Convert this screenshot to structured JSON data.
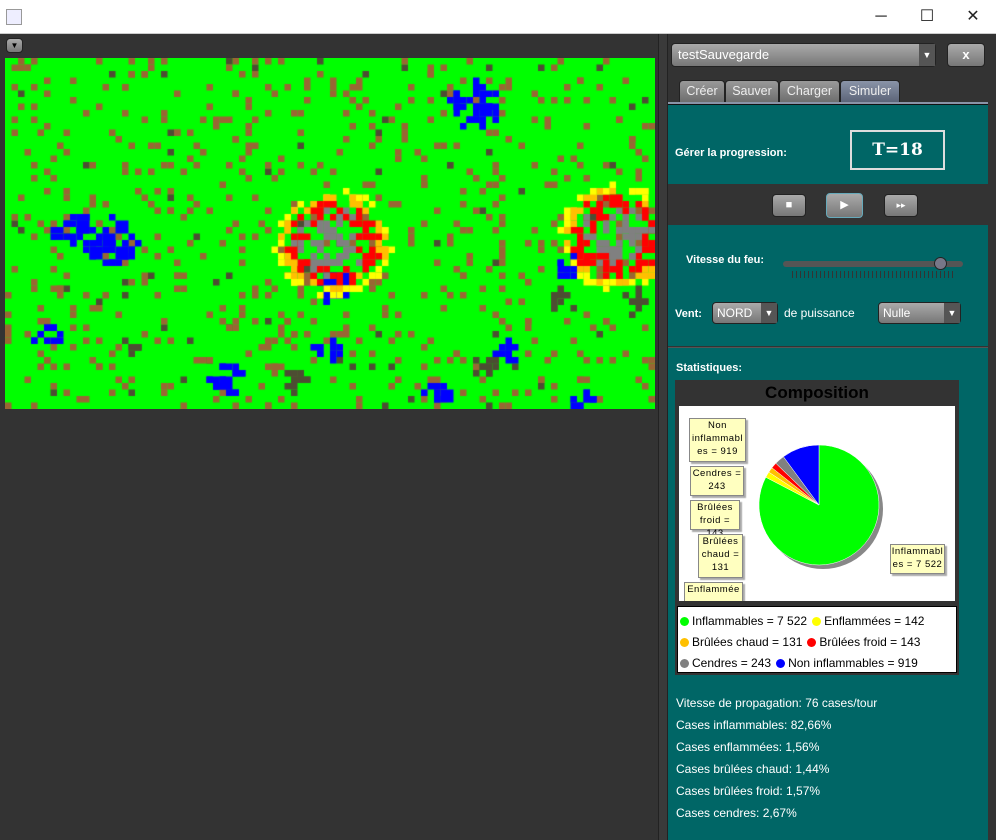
{
  "window": {
    "icon": "java-icon",
    "minimize": "─",
    "maximize": "☐",
    "close": "✕"
  },
  "toolbar": {
    "menu_icon": "▼"
  },
  "right": {
    "file_select": "testSauvegarde",
    "close_label": "x",
    "tabs": [
      {
        "label": "Créer"
      },
      {
        "label": "Sauver"
      },
      {
        "label": "Charger"
      },
      {
        "label": "Simuler",
        "active": true
      }
    ],
    "progress_label": "Gérer la progression:",
    "time": "T=18",
    "controls": {
      "stop": "■",
      "play": "▶",
      "fast": "▸▸"
    },
    "speed_label": "Vitesse du feu:",
    "speed_value": 0.87,
    "wind_label": "Vent:",
    "wind_dir": "NORD",
    "power_label": "de puissance",
    "power": "Nulle",
    "stats_label": "Statistiques:"
  },
  "chart_data": {
    "type": "pie",
    "title": "Composition",
    "categories": [
      "Inflammables",
      "Enflammées",
      "Brûlées chaud",
      "Brûlées froid",
      "Cendres",
      "Non inflammables"
    ],
    "values": [
      7522,
      142,
      131,
      143,
      243,
      919
    ],
    "colors": [
      "#00ff00",
      "#ffff00",
      "#ffc000",
      "#ff0000",
      "#808080",
      "#0000ff"
    ],
    "legend": [
      "Inflammables = 7 522",
      "Enflammées = 142",
      "Brûlées chaud = 131",
      "Brûlées froid = 143",
      "Cendres = 243",
      "Non inflammables = 919"
    ],
    "callouts": {
      "inflammables": "Inflammabl es = 7 522",
      "non": "Non inflammabl es = 919",
      "cendres": "Cendres = 243",
      "froid": "Brûlées froid = 143",
      "chaud": "Brûlées chaud = 131",
      "enfl": "Enflammée"
    },
    "legend_placement": "bottom"
  },
  "stats": [
    "Vitesse de propagation: 76 cases/tour",
    "Cases inflammables: 82,66%",
    "Cases enflammées: 1,56%",
    "Cases brûlées chaud: 1,44%",
    "Cases brûlées froid: 1,57%",
    "Cases cendres: 2,67%"
  ],
  "map_colors": {
    "grass": "#00ff00",
    "water": "#0000ff",
    "dirt": "#996633",
    "fire": "#ffff00",
    "hot": "#ffc000",
    "cold": "#ff0000",
    "ash": "#808080",
    "rock": "#4d4d33"
  }
}
